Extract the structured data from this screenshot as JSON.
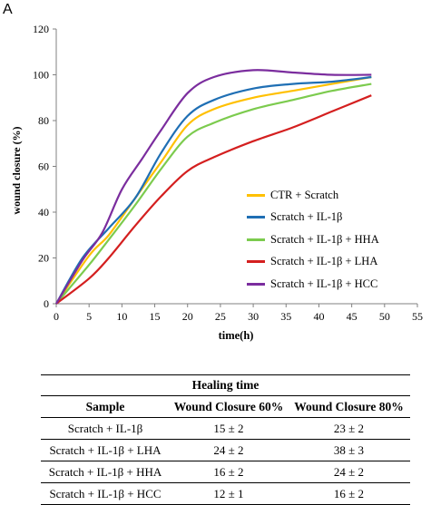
{
  "panel_label": "A",
  "chart_data": {
    "type": "line",
    "title": "",
    "xlabel": "time(h)",
    "ylabel": "wound closure (%)",
    "xlim": [
      0,
      55
    ],
    "ylim": [
      0,
      120
    ],
    "xticks": [
      0,
      5,
      10,
      15,
      20,
      25,
      30,
      35,
      40,
      45,
      50,
      55
    ],
    "yticks": [
      0,
      20,
      40,
      60,
      80,
      100,
      120
    ],
    "grid": false,
    "legend_position": "center-right",
    "series": [
      {
        "name": "CTR + Scratch",
        "color": "#FFC000",
        "points": [
          [
            0,
            0
          ],
          [
            5,
            21
          ],
          [
            8,
            30
          ],
          [
            12,
            46
          ],
          [
            16,
            62
          ],
          [
            20,
            78
          ],
          [
            24,
            85
          ],
          [
            30,
            90
          ],
          [
            36,
            93
          ],
          [
            42,
            96
          ],
          [
            48,
            99
          ]
        ]
      },
      {
        "name": "Scratch + IL-1β",
        "color": "#1F6FB4",
        "points": [
          [
            0,
            0
          ],
          [
            4,
            20
          ],
          [
            8,
            33
          ],
          [
            12,
            46
          ],
          [
            16,
            66
          ],
          [
            20,
            82
          ],
          [
            24,
            89
          ],
          [
            30,
            94
          ],
          [
            36,
            96
          ],
          [
            42,
            97
          ],
          [
            48,
            99
          ]
        ]
      },
      {
        "name": "Scratch + IL-1β + HHA",
        "color": "#7CCB4E",
        "points": [
          [
            0,
            0
          ],
          [
            5,
            17
          ],
          [
            8,
            28
          ],
          [
            12,
            43
          ],
          [
            16,
            59
          ],
          [
            20,
            73
          ],
          [
            24,
            79
          ],
          [
            30,
            85
          ],
          [
            36,
            89
          ],
          [
            42,
            93
          ],
          [
            48,
            96
          ]
        ]
      },
      {
        "name": "Scratch + IL-1β + LHA",
        "color": "#D41F1F",
        "points": [
          [
            0,
            0
          ],
          [
            5,
            11
          ],
          [
            8,
            20
          ],
          [
            12,
            34
          ],
          [
            16,
            47
          ],
          [
            20,
            58
          ],
          [
            24,
            64
          ],
          [
            30,
            71
          ],
          [
            36,
            77
          ],
          [
            42,
            84
          ],
          [
            48,
            91
          ]
        ]
      },
      {
        "name": "Scratch + IL-1β + HCC",
        "color": "#7B2D9E",
        "points": [
          [
            0,
            0
          ],
          [
            4,
            19
          ],
          [
            7,
            31
          ],
          [
            10,
            50
          ],
          [
            13,
            63
          ],
          [
            16,
            76
          ],
          [
            20,
            92
          ],
          [
            24,
            99
          ],
          [
            30,
            102
          ],
          [
            36,
            101
          ],
          [
            42,
            100
          ],
          [
            48,
            100
          ]
        ]
      }
    ]
  },
  "table": {
    "title": "Healing time",
    "headers": [
      "Sample",
      "Wound Closure 60%",
      "Wound Closure 80%"
    ],
    "rows": [
      [
        "Scratch + IL-1β",
        "15 ± 2",
        "23 ± 2"
      ],
      [
        "Scratch + IL-1β + LHA",
        "24 ± 2",
        "38 ± 3"
      ],
      [
        "Scratch + IL-1β + HHA",
        "16 ± 2",
        "24 ± 2"
      ],
      [
        "Scratch + IL-1β + HCC",
        "12 ± 1",
        "16 ± 2"
      ]
    ]
  }
}
